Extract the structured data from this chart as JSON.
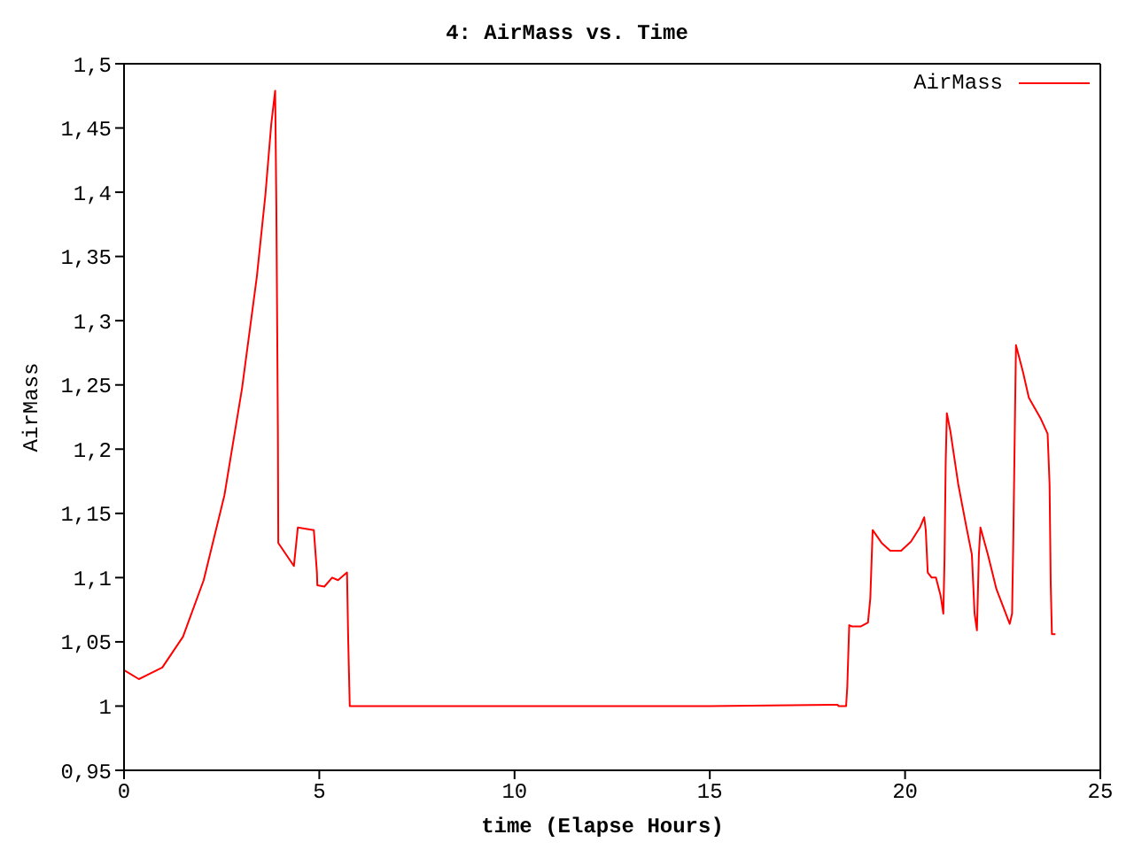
{
  "chart_data": {
    "type": "line",
    "title": "4: AirMass vs. Time",
    "xlabel": "time (Elapse Hours)",
    "ylabel": "AirMass",
    "x": [
      0,
      0.38,
      0.98,
      1.51,
      2.04,
      2.57,
      3.02,
      3.4,
      3.62,
      3.77,
      3.87,
      3.9,
      3.94,
      3.95,
      4.35,
      4.45,
      4.86,
      4.94,
      4.95,
      5.13,
      5.33,
      5.48,
      5.71,
      5.74,
      5.78,
      10,
      15,
      18.12,
      18.27,
      18.3,
      18.49,
      18.52,
      18.57,
      18.64,
      18.87,
      19.05,
      19.11,
      19.17,
      19.4,
      19.62,
      19.9,
      20.15,
      20.38,
      20.49,
      20.53,
      20.58,
      20.68,
      20.79,
      20.91,
      20.98,
      21.01,
      21.04,
      21.07,
      21.16,
      21.36,
      21.56,
      21.71,
      21.78,
      21.84,
      21.89,
      21.93,
      22.12,
      22.34,
      22.68,
      22.74,
      22.77,
      22.84,
      23.02,
      23.17,
      23.47,
      23.65,
      23.7,
      23.73,
      23.76,
      23.85
    ],
    "series": [
      {
        "name": "AirMass",
        "color": "#ff0000",
        "values": [
          1.028,
          1.021,
          1.03,
          1.054,
          1.098,
          1.164,
          1.247,
          1.334,
          1.398,
          1.453,
          1.479,
          1.391,
          1.214,
          1.127,
          1.109,
          1.139,
          1.137,
          1.104,
          1.094,
          1.093,
          1.1,
          1.098,
          1.104,
          1.052,
          1.0,
          1.0,
          1.0,
          1.001,
          1.001,
          1.0,
          1.0,
          1.015,
          1.063,
          1.062,
          1.062,
          1.065,
          1.084,
          1.137,
          1.127,
          1.121,
          1.121,
          1.128,
          1.139,
          1.147,
          1.137,
          1.104,
          1.1,
          1.1,
          1.086,
          1.072,
          1.114,
          1.189,
          1.228,
          1.214,
          1.173,
          1.141,
          1.118,
          1.072,
          1.059,
          1.118,
          1.139,
          1.118,
          1.091,
          1.064,
          1.072,
          1.127,
          1.281,
          1.26,
          1.24,
          1.224,
          1.212,
          1.173,
          1.095,
          1.056,
          1.056
        ]
      }
    ],
    "xlim": [
      0,
      25
    ],
    "xticks": [
      0,
      5,
      10,
      15,
      20,
      25
    ],
    "ylim": [
      0.95,
      1.5
    ],
    "yticks": [
      {
        "value": 0.95,
        "label": "0,95"
      },
      1,
      {
        "value": 1.05,
        "label": "1,05"
      },
      {
        "value": 1.1,
        "label": "1,1"
      },
      {
        "value": 1.15,
        "label": "1,15"
      },
      {
        "value": 1.2,
        "label": "1,2"
      },
      {
        "value": 1.25,
        "label": "1,25"
      },
      {
        "value": 1.3,
        "label": "1,3"
      },
      {
        "value": 1.35,
        "label": "1,35"
      },
      {
        "value": 1.4,
        "label": "1,4"
      },
      {
        "value": 1.45,
        "label": "1,45"
      },
      {
        "value": 1.5,
        "label": "1,5"
      }
    ],
    "grid": false,
    "legend": "top right",
    "marker": "none",
    "line_style": "solid"
  }
}
